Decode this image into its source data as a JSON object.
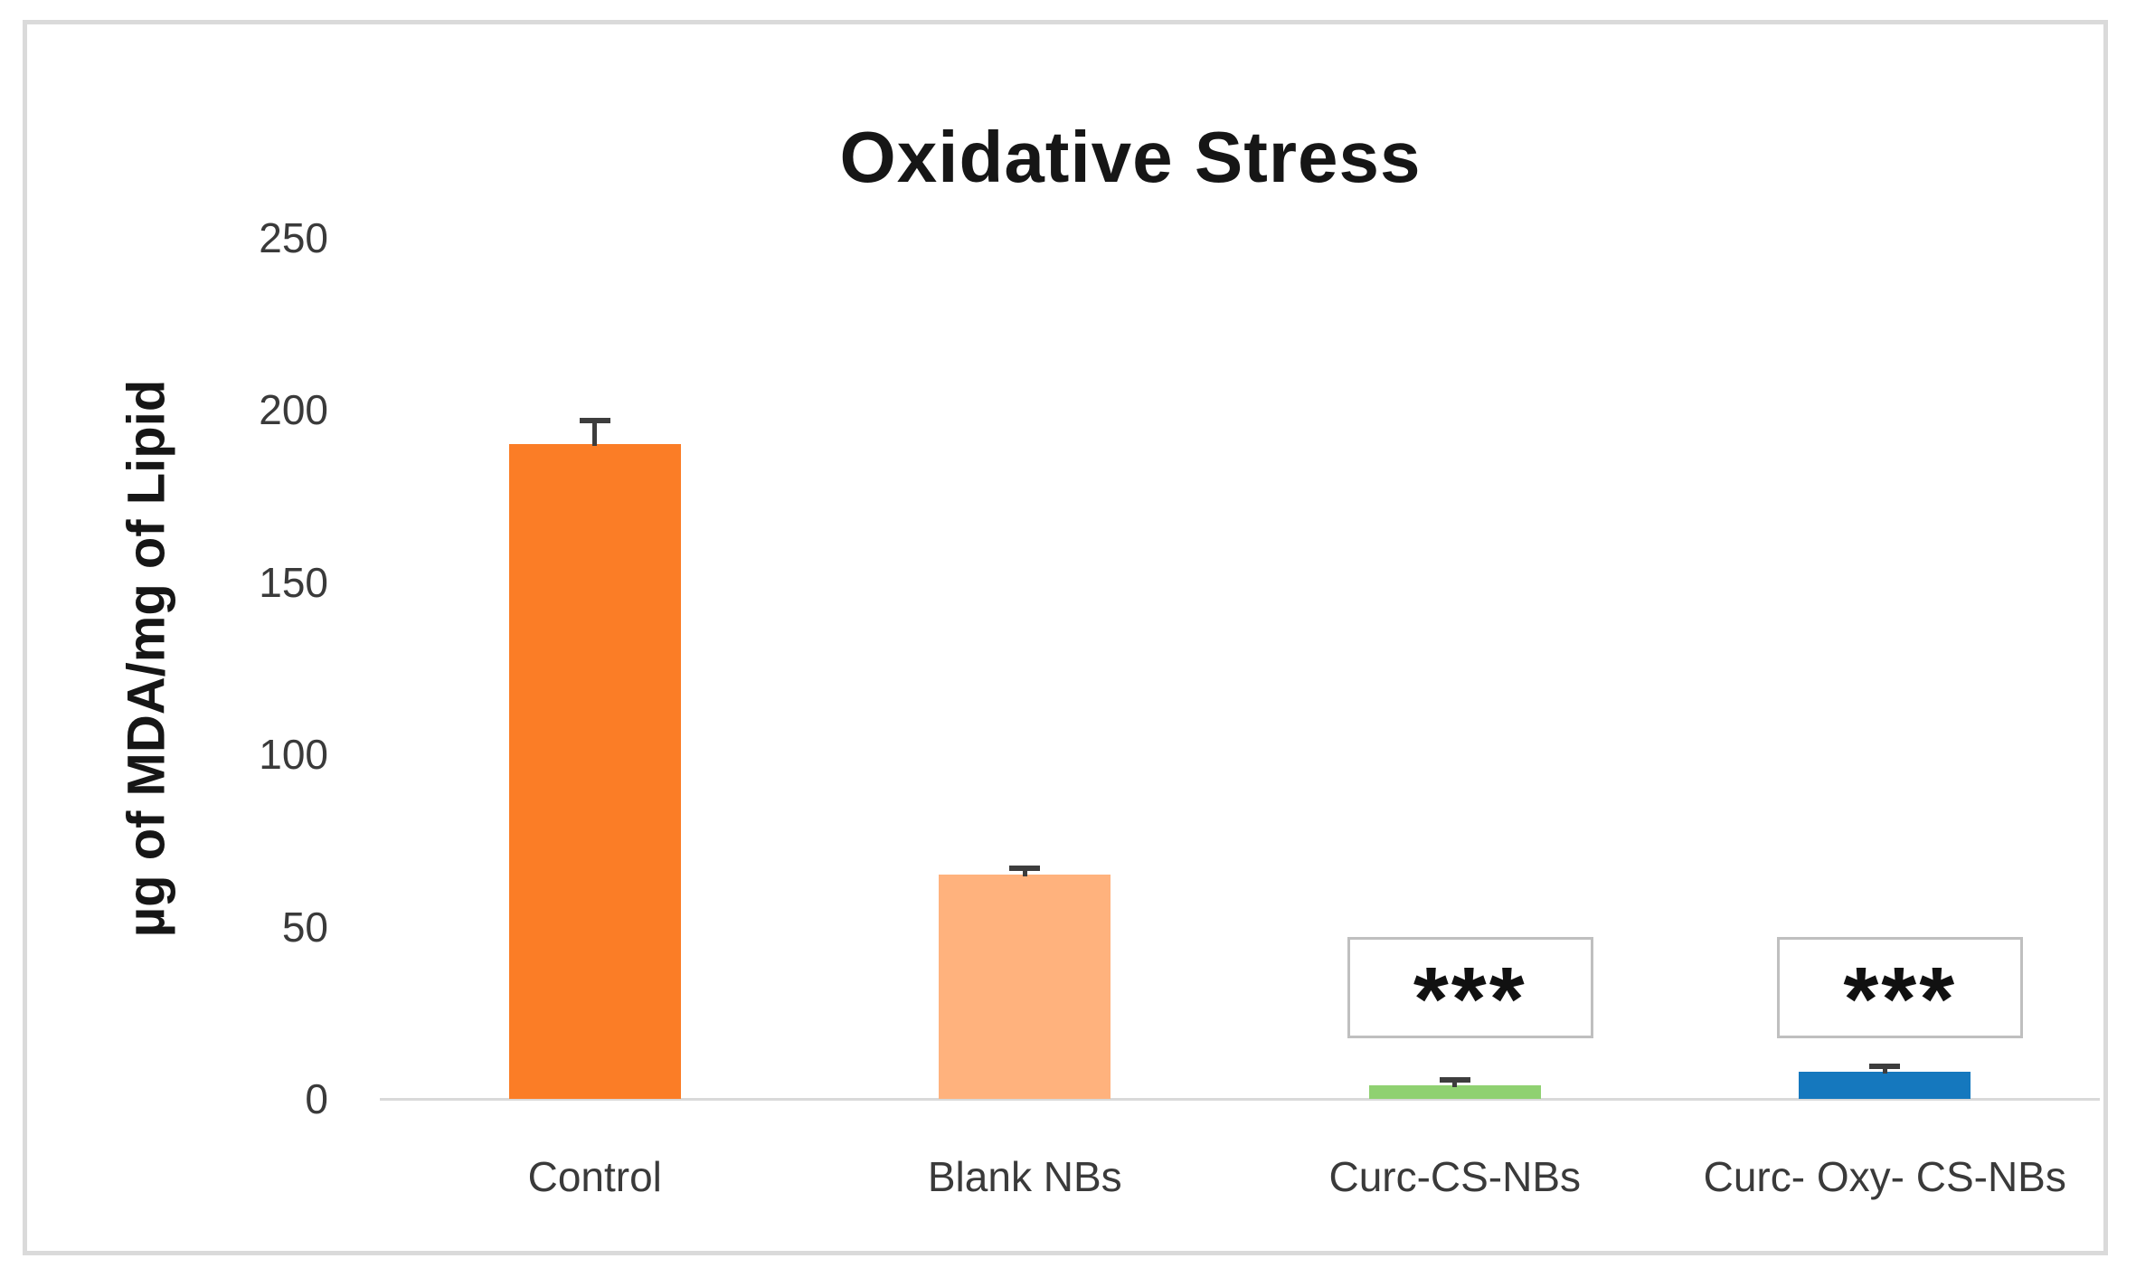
{
  "chart_data": {
    "type": "bar",
    "title": "Oxidative Stress",
    "xlabel": "",
    "ylabel": "µg of MDA/mg of Lipid",
    "categories": [
      "Control",
      "Blank NBs",
      "Curc-CS-NBs",
      "Curc- Oxy- CS-NBs"
    ],
    "values": [
      190,
      65,
      4,
      8
    ],
    "errors": [
      7,
      2,
      1.5,
      1.5
    ],
    "bar_colors": [
      "#FB7D26",
      "#FFB27D",
      "#8FD171",
      "#1578BE"
    ],
    "significance": [
      null,
      null,
      "***",
      "***"
    ],
    "sig_box_value_span": {
      "bottom": 17.5,
      "top": 47
    },
    "ylim": [
      0,
      250
    ],
    "yticks": [
      0,
      50,
      100,
      150,
      200,
      250
    ],
    "grid": false,
    "legend": null
  },
  "colors": {
    "axis_line": "#D9D9D9",
    "frame_border": "#DADADA",
    "error_bar": "#3D3D3D",
    "sig_box_border": "#BFBFBF",
    "tick_text": "#3A3A3A",
    "title_text": "#161616"
  }
}
